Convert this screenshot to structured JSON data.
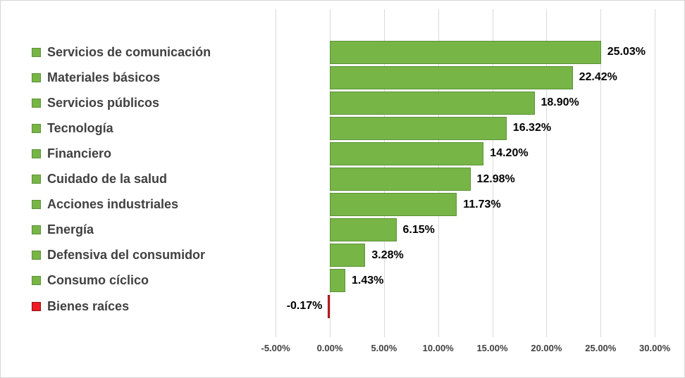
{
  "chart_data": {
    "type": "bar",
    "orientation": "horizontal",
    "title": "",
    "xlabel": "",
    "ylabel": "",
    "categories": [
      "Servicios de comunicación",
      "Materiales básicos",
      "Servicios públicos",
      "Tecnología",
      "Financiero",
      "Cuidado de la salud",
      "Acciones industriales",
      "Energía",
      "Defensiva del consumidor",
      "Consumo cíclico",
      "Bienes raíces"
    ],
    "values": [
      25.03,
      22.42,
      18.9,
      16.32,
      14.2,
      12.98,
      11.73,
      6.15,
      3.28,
      1.43,
      -0.17
    ],
    "value_labels": [
      "25.03%",
      "22.42%",
      "18.90%",
      "16.32%",
      "14.20%",
      "12.98%",
      "11.73%",
      "6.15%",
      "3.28%",
      "1.43%",
      "-0.17%"
    ],
    "x_ticks": [
      -5,
      0,
      5,
      10,
      15,
      20,
      25,
      30
    ],
    "x_tick_labels": [
      "-5.00%",
      "0.00%",
      "5.00%",
      "10.00%",
      "15.00%",
      "20.00%",
      "25.00%",
      "30.00%"
    ],
    "xlim": [
      -5,
      30
    ],
    "grid": true,
    "legend_position": "none",
    "colors": {
      "positive_fill": "#77b547",
      "positive_border": "#5c9136",
      "negative_fill": "#ee1c25",
      "negative_border": "#8f1013",
      "gridline": "#d9d9d9",
      "label_text": "#404040",
      "value_text": "#000000",
      "tick_text": "#404040",
      "frame_border": "#d6d6d6",
      "background": "#ffffff"
    }
  }
}
